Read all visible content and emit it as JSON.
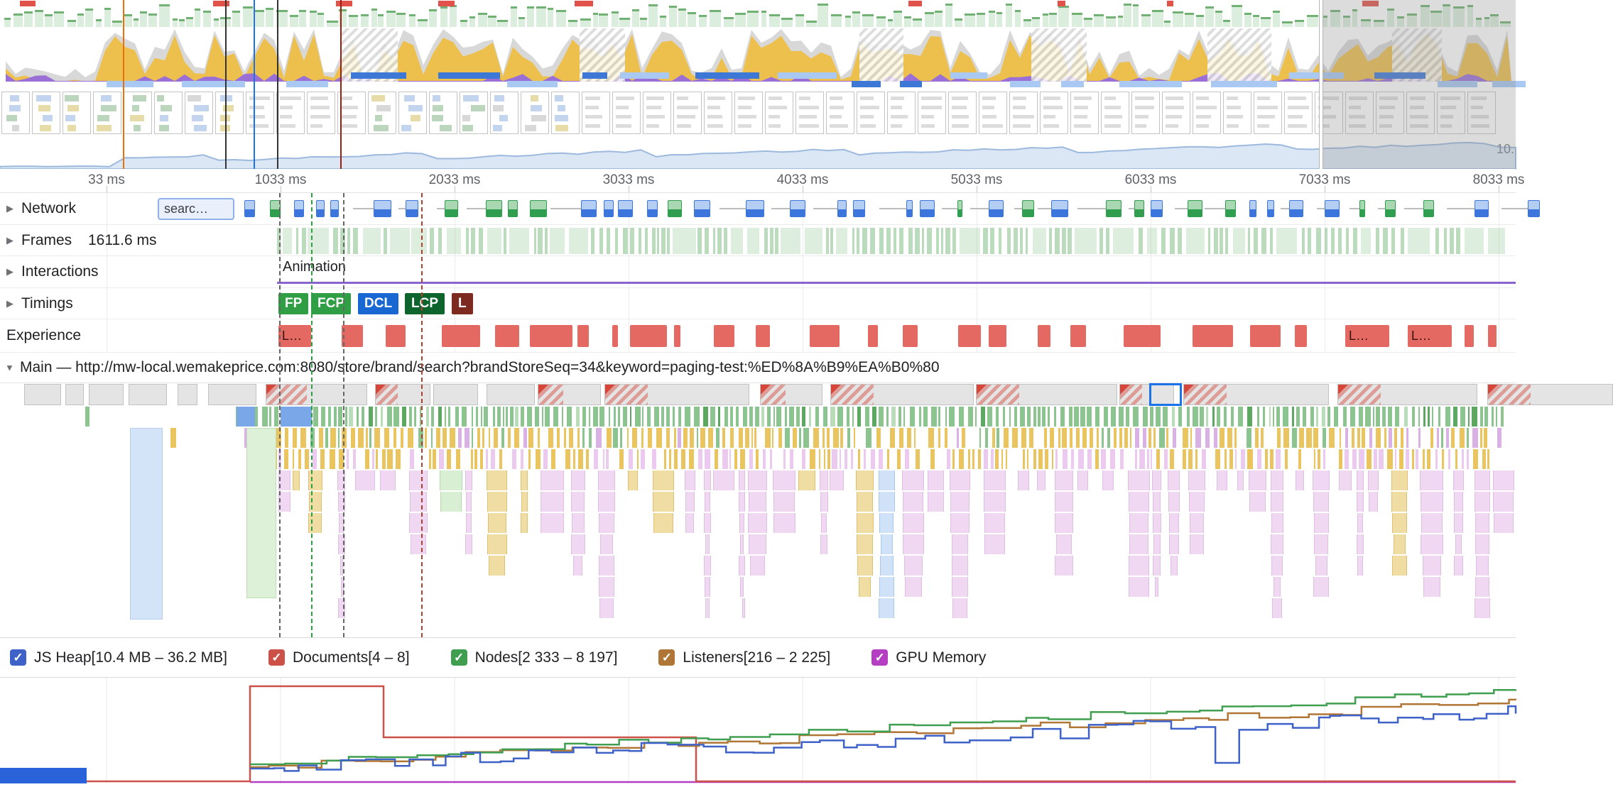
{
  "overview": {
    "corner_label": "10."
  },
  "icons": {
    "collapsed": "▶",
    "expanded": "▼"
  },
  "check_glyph": "✓",
  "ruler": {
    "labels": [
      "33 ms",
      "1033 ms",
      "2033 ms",
      "3033 ms",
      "4033 ms",
      "5033 ms",
      "6033 ms",
      "7033 ms",
      "8033 ms"
    ]
  },
  "tracks": {
    "network": {
      "label": "Network",
      "request": "searc…"
    },
    "frames": {
      "label": "Frames",
      "value": "1611.6 ms"
    },
    "interactions": {
      "label": "Interactions",
      "annotation": "Animation"
    },
    "timings": {
      "label": "Timings"
    },
    "experience": {
      "label": "Experience",
      "shift_label": "L…"
    },
    "main": {
      "label": "Main — http://mw-local.wemakeprice.com:8080/store/brand/search?brandStoreSeq=34&keyword=paging-test:%ED%8A%B9%EA%B0%80"
    }
  },
  "timing_badges": [
    {
      "label": "FP",
      "color": "#2f9e44"
    },
    {
      "label": "FCP",
      "color": "#2f9e44"
    },
    {
      "label": "DCL",
      "color": "#1967d2"
    },
    {
      "label": "LCP",
      "color": "#0d652d"
    },
    {
      "label": "L",
      "color": "#7d2b20"
    }
  ],
  "memory_legend": [
    {
      "label": "JS Heap[10.4 MB – 36.2 MB]",
      "color": "#3e62c8"
    },
    {
      "label": "Documents[4 – 8]",
      "color": "#cc5148"
    },
    {
      "label": "Nodes[2 333 – 8 197]",
      "color": "#3f9e4f"
    },
    {
      "label": "Listeners[216 – 2 225]",
      "color": "#b07636"
    },
    {
      "label": "GPU Memory",
      "color": "#b53fc2"
    }
  ]
}
